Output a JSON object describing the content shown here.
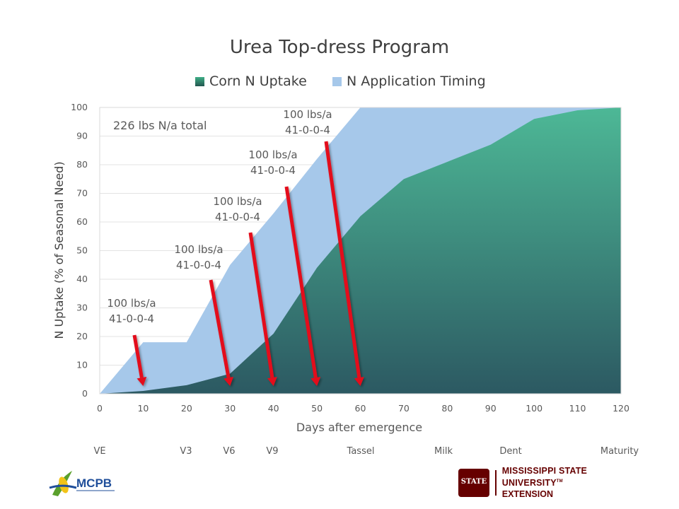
{
  "chart_data": {
    "type": "area",
    "title": "Urea Top-dress Program",
    "xlabel": "Days after emergence",
    "ylabel": "N Uptake (% of Seasonal Need)",
    "xlim": [
      0,
      120
    ],
    "ylim": [
      0,
      100
    ],
    "x_ticks": [
      "0",
      "10",
      "20",
      "30",
      "40",
      "50",
      "60",
      "70",
      "80",
      "90",
      "100",
      "110",
      "120"
    ],
    "y_ticks": [
      "0",
      "10",
      "20",
      "30",
      "40",
      "50",
      "60",
      "70",
      "80",
      "90",
      "100"
    ],
    "grid": true,
    "legend": "top",
    "series": [
      {
        "name": "Corn N Uptake",
        "color": "#2e6b6e",
        "points": [
          [
            0,
            0
          ],
          [
            10,
            1
          ],
          [
            20,
            3
          ],
          [
            30,
            7
          ],
          [
            40,
            21
          ],
          [
            50,
            44
          ],
          [
            60,
            62
          ],
          [
            70,
            75
          ],
          [
            80,
            81
          ],
          [
            90,
            87
          ],
          [
            100,
            96
          ],
          [
            110,
            99
          ],
          [
            120,
            100
          ]
        ]
      },
      {
        "name": "N Application Timing",
        "color": "#a6c8ea",
        "points": [
          [
            0,
            0
          ],
          [
            10,
            18
          ],
          [
            20,
            18
          ],
          [
            30,
            45
          ],
          [
            40,
            63
          ],
          [
            50,
            82
          ],
          [
            60,
            100
          ],
          [
            120,
            100
          ]
        ]
      }
    ],
    "annotations": [
      {
        "text_line1": "100 lbs/a",
        "text_line2": "41-0-0-4",
        "arrow_to_x": 10
      },
      {
        "text_line1": "100 lbs/a",
        "text_line2": "41-0-0-4",
        "arrow_to_x": 30
      },
      {
        "text_line1": "100 lbs/a",
        "text_line2": "41-0-0-4",
        "arrow_to_x": 40
      },
      {
        "text_line1": "100 lbs/a",
        "text_line2": "41-0-0-4",
        "arrow_to_x": 50
      },
      {
        "text_line1": "100 lbs/a",
        "text_line2": "41-0-0-4",
        "arrow_to_x": 60
      }
    ],
    "total_note": "226 lbs N/a total",
    "growth_stages": [
      "VE",
      "V3",
      "V6",
      "V9",
      "Tassel",
      "Milk",
      "Dent",
      "Maturity"
    ]
  },
  "logos": {
    "left_text": "MCPB",
    "right_line1": "MISSISSIPPI STATE UNIVERSITY",
    "right_trademark": "TM",
    "right_line2": "EXTENSION",
    "right_mark_text": "STATE"
  }
}
